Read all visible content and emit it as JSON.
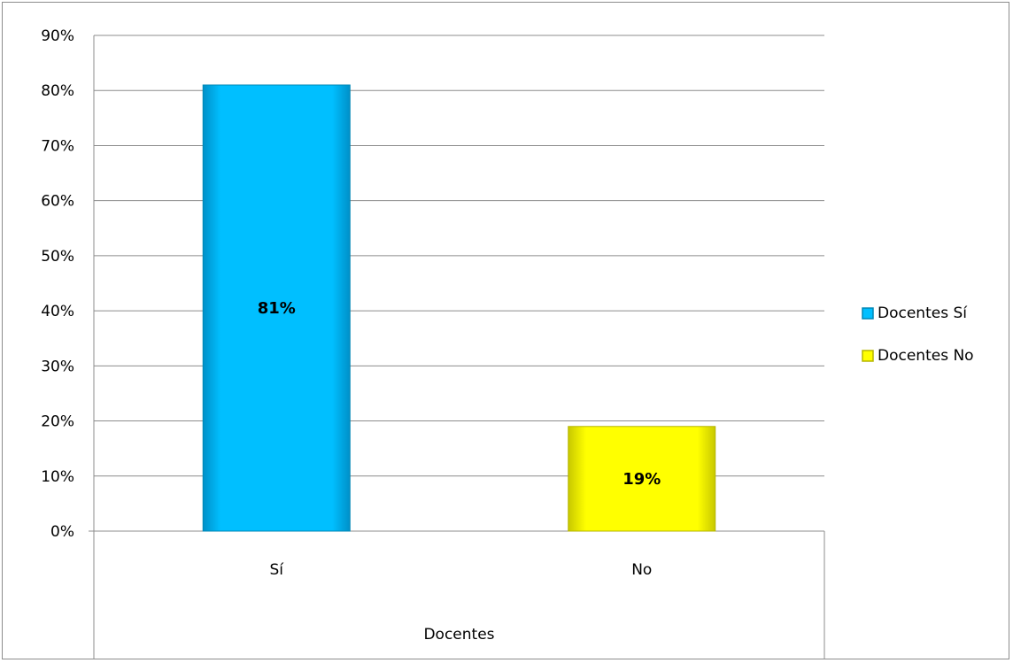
{
  "chart_data": {
    "type": "bar",
    "categories": [
      "Sí",
      "No"
    ],
    "values": [
      81,
      19
    ],
    "data_labels": [
      "81%",
      "19%"
    ],
    "group_label": "Docentes",
    "series_names": [
      "Docentes Sí",
      "Docentes No"
    ],
    "colors": [
      "#00BFFF",
      "#FFFF00"
    ],
    "ylim": [
      0,
      90
    ],
    "ytick_step": 10,
    "ytick_labels": [
      "0%",
      "10%",
      "20%",
      "30%",
      "40%",
      "50%",
      "60%",
      "70%",
      "80%",
      "90%"
    ],
    "grid": true,
    "legend_placement": "right"
  }
}
